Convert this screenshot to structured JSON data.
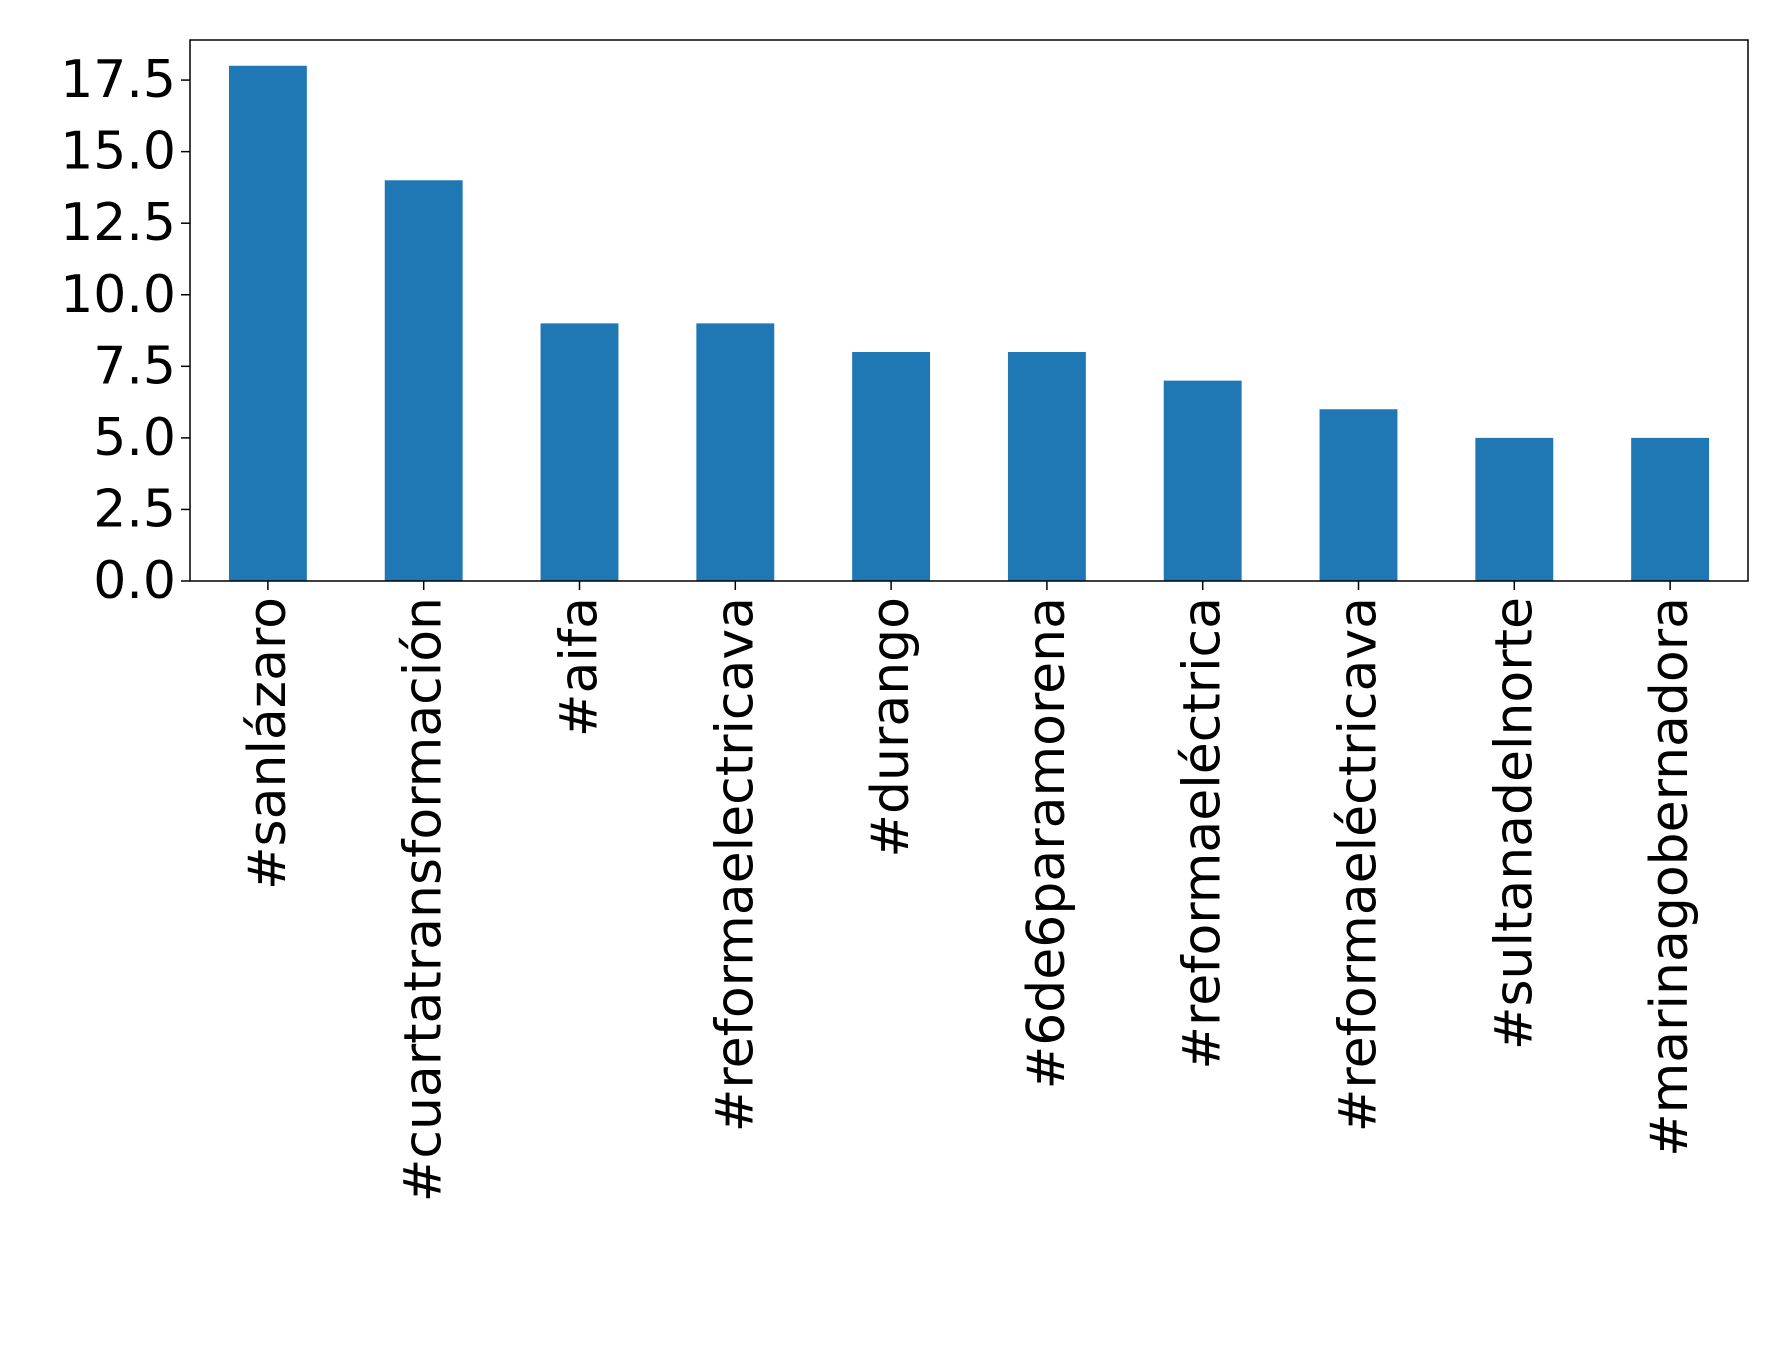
{
  "chart_data": {
    "type": "bar",
    "categories": [
      "#sanlázaro",
      "#cuartatransformación",
      "#aifa",
      "#reformaelectricava",
      "#durango",
      "#6de6paramorena",
      "#reformaeléctrica",
      "#reformaeléctricava",
      "#sultanadelnorte",
      "#marinagobernadora"
    ],
    "values": [
      18,
      14,
      9,
      9,
      8,
      8,
      7,
      6,
      5,
      5
    ],
    "yticks": [
      "0.0",
      "2.5",
      "5.0",
      "7.5",
      "10.0",
      "12.5",
      "15.0",
      "17.5"
    ],
    "ylim": [
      0,
      18.9
    ],
    "title": "",
    "xlabel": "",
    "ylabel": "",
    "grid": false,
    "legend": "none",
    "bar_color": "#1f77b4"
  }
}
